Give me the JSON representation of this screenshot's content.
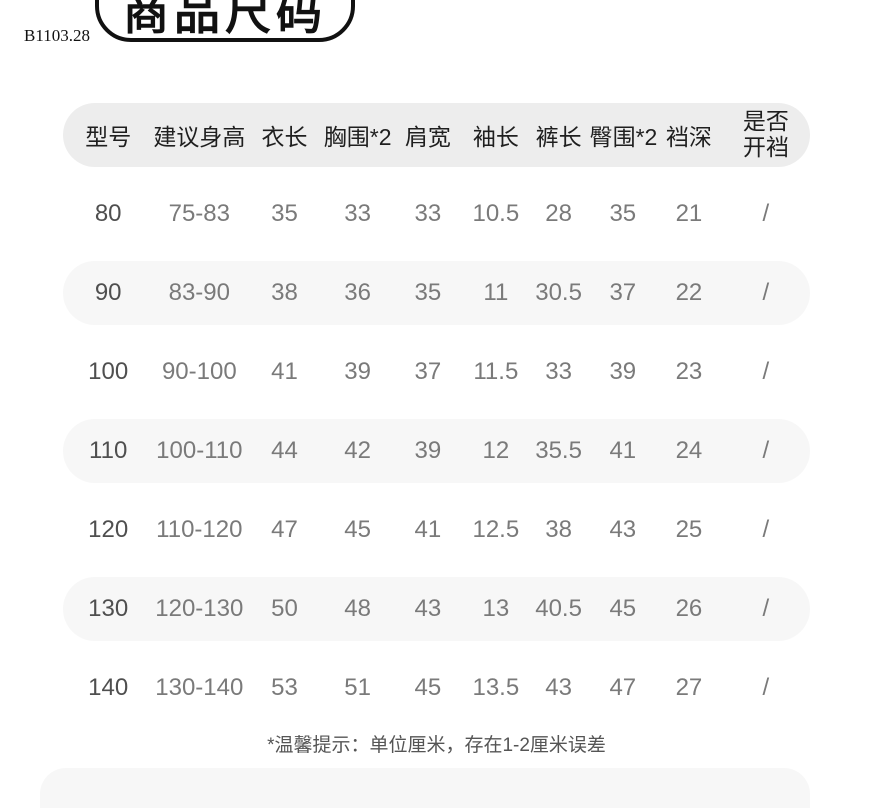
{
  "page": {
    "watermark": "B1103.28",
    "badge_title": "商品尺码",
    "note": "*温馨提示：单位厘米，存在1-2厘米误差"
  },
  "table": {
    "headers": [
      "型号",
      "建议身高",
      "衣长",
      "胸围*2",
      "肩宽",
      "袖长",
      "裤长",
      "臀围*2",
      "裆深",
      "是否开裆"
    ],
    "rows": [
      [
        "80",
        "75-83",
        "35",
        "33",
        "33",
        "10.5",
        "28",
        "35",
        "21",
        "/"
      ],
      [
        "90",
        "83-90",
        "38",
        "36",
        "35",
        "11",
        "30.5",
        "37",
        "22",
        "/"
      ],
      [
        "100",
        "90-100",
        "41",
        "39",
        "37",
        "11.5",
        "33",
        "39",
        "23",
        "/"
      ],
      [
        "110",
        "100-110",
        "44",
        "42",
        "39",
        "12",
        "35.5",
        "41",
        "24",
        "/"
      ],
      [
        "120",
        "110-120",
        "47",
        "45",
        "41",
        "12.5",
        "38",
        "43",
        "25",
        "/"
      ],
      [
        "130",
        "120-130",
        "50",
        "48",
        "43",
        "13",
        "40.5",
        "45",
        "26",
        "/"
      ],
      [
        "140",
        "130-140",
        "53",
        "51",
        "45",
        "13.5",
        "43",
        "47",
        "27",
        "/"
      ]
    ]
  },
  "colors": {
    "header_bg": "#ededed",
    "shaded_row_bg": "#f7f7f7",
    "header_text": "#1f1f1f",
    "data_text": "#7a7a7a",
    "badge_border": "#111111"
  }
}
